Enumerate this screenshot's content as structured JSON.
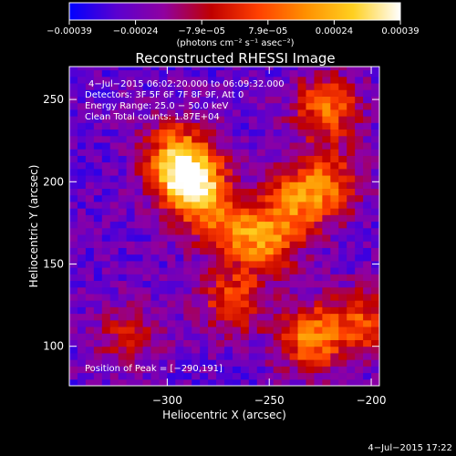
{
  "chart_data": {
    "type": "heatmap",
    "title": "Reconstructed RHESSI Image",
    "xlabel": "Heliocentric X (arcsec)",
    "ylabel": "Heliocentric Y (arcsec)",
    "xlim": [
      -348,
      -196
    ],
    "ylim": [
      76,
      270
    ],
    "x_ticks": [
      -300,
      -250,
      -200
    ],
    "y_ticks": [
      100,
      150,
      200,
      250
    ],
    "x_tick_labels": [
      "−300",
      "−250",
      "−200"
    ],
    "y_tick_labels": [
      "100",
      "150",
      "200",
      "250"
    ],
    "colorbar": {
      "range": [
        -0.00039,
        0.00039
      ],
      "tick_labels": [
        "−0.00039",
        "−0.00024",
        "−7.9e−05",
        "7.9e−05",
        "0.00024",
        "0.00039"
      ],
      "unit_label": "(photons cm⁻² s⁻¹ asec⁻²)",
      "colors": [
        "#0000ff",
        "#5a00d0",
        "#9000a0",
        "#c00000",
        "#ff4000",
        "#ff9000",
        "#ffd020",
        "#ffffff"
      ]
    },
    "info_lines": [
      "4−Jul−2015 06:02:20.000 to 06:09:32.000",
      "Detectors: 3F 5F 6F 7F 8F 9F, Att 0",
      "Energy Range: 25.0 − 50.0 keV",
      "Clean     Total counts: 1.87E+04"
    ],
    "peak_label": "Position of Peak = [−290,191]",
    "peak": [
      -290,
      191
    ],
    "sources": [
      {
        "x": -288,
        "y": 198,
        "amp": 1.0
      },
      {
        "x": -296,
        "y": 218,
        "amp": 0.55
      },
      {
        "x": -270,
        "y": 172,
        "amp": 0.45
      },
      {
        "x": -250,
        "y": 165,
        "amp": 0.55
      },
      {
        "x": -235,
        "y": 190,
        "amp": 0.5
      },
      {
        "x": -220,
        "y": 200,
        "amp": 0.4
      },
      {
        "x": -222,
        "y": 245,
        "amp": 0.55
      },
      {
        "x": -268,
        "y": 128,
        "amp": 0.45
      },
      {
        "x": -230,
        "y": 105,
        "amp": 0.6
      },
      {
        "x": -205,
        "y": 115,
        "amp": 0.45
      },
      {
        "x": -320,
        "y": 105,
        "amp": 0.3
      }
    ]
  },
  "footer": {
    "timestamp": "4−Jul−2015 17:22"
  }
}
